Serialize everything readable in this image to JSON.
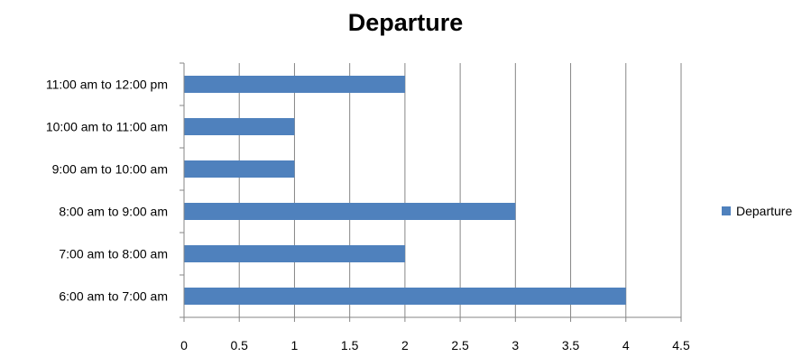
{
  "chart_data": {
    "type": "bar",
    "orientation": "horizontal",
    "title": "Departure",
    "categories": [
      "6:00 am to 7:00 am",
      "7:00 am to 8:00 am",
      "8:00 am to 9:00 am",
      "9:00 am to 10:00 am",
      "10:00 am to 11:00 am",
      "11:00 am to 12:00 pm"
    ],
    "series": [
      {
        "name": "Departure",
        "values": [
          4,
          2,
          3,
          1,
          1,
          2
        ],
        "color": "#4F81BD"
      }
    ],
    "xlim": [
      0,
      4.5
    ],
    "xticks": [
      "0",
      "0.5",
      "1",
      "1.5",
      "2",
      "2.5",
      "3",
      "3.5",
      "4",
      "4.5"
    ],
    "xlabel": "",
    "ylabel": "",
    "grid": "vertical",
    "legend": "right"
  }
}
